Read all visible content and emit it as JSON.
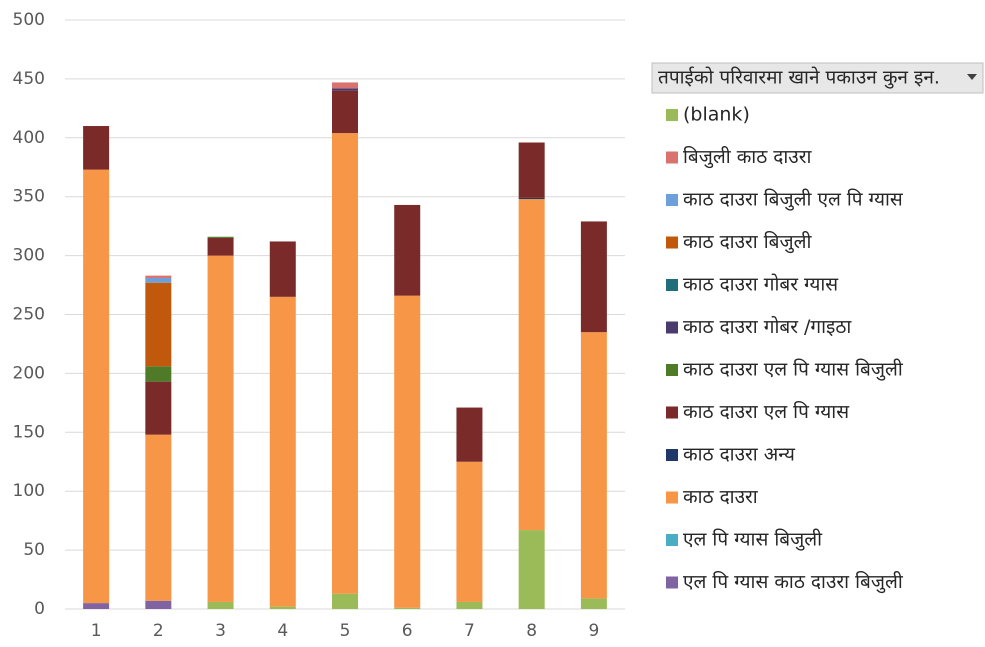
{
  "chart_data": {
    "type": "stacked_bar",
    "legend_title": "तपाईको परिवारमा खाने पकाउन कुन इन.",
    "categories": [
      "1",
      "2",
      "3",
      "4",
      "5",
      "6",
      "7",
      "8",
      "9"
    ],
    "ylim": [
      0,
      500
    ],
    "yticks": [
      0,
      50,
      100,
      150,
      200,
      250,
      300,
      350,
      400,
      450,
      500
    ],
    "grid": true,
    "legend": "right",
    "series": [
      {
        "name": "(blank)",
        "color": "#9bbb59",
        "values": [
          0,
          0,
          6,
          2,
          13,
          1,
          6,
          67,
          9
        ]
      },
      {
        "name": "बिजुली  काठ दाउरा",
        "color": "#d9736f",
        "values": [
          0,
          2,
          0,
          0,
          5,
          0,
          0,
          0,
          0
        ]
      },
      {
        "name": "काठ दाउरा  बिजुली  एल पि ग्यास",
        "color": "#6f9fd8",
        "values": [
          0,
          4,
          0,
          0,
          0,
          0,
          0,
          0,
          0
        ]
      },
      {
        "name": "काठ दाउरा  बिजुली",
        "color": "#c0590b",
        "values": [
          0,
          71,
          0,
          0,
          0,
          0,
          0,
          0,
          0
        ]
      },
      {
        "name": "काठ दाउरा  गोबर ग्यास",
        "color": "#1f6e7a",
        "values": [
          0,
          0,
          0,
          0,
          0,
          0,
          0,
          0,
          0
        ]
      },
      {
        "name": "काठ दाउरा  गोबर /गाइठा",
        "color": "#4b3a6e",
        "values": [
          0,
          0,
          0,
          0,
          2,
          0,
          0,
          0,
          0
        ]
      },
      {
        "name": "काठ दाउरा  एल पि ग्यास  बिजुली",
        "color": "#4f7a28",
        "values": [
          0,
          13,
          1,
          0,
          0,
          0,
          0,
          0,
          0
        ]
      },
      {
        "name": "काठ दाउरा  एल पि ग्यास",
        "color": "#7b2a2a",
        "values": [
          37,
          45,
          15,
          47,
          36,
          77,
          46,
          47,
          94
        ]
      },
      {
        "name": "काठ दाउरा  अन्य",
        "color": "#1f3a68",
        "values": [
          0,
          0,
          0,
          0,
          0,
          0,
          0,
          1,
          0
        ]
      },
      {
        "name": "काठ दाउरा",
        "color": "#f79646",
        "values": [
          368,
          141,
          294,
          263,
          391,
          265,
          119,
          281,
          226
        ]
      },
      {
        "name": "एल पि ग्यास  बिजुली",
        "color": "#4bacc6",
        "values": [
          0,
          0,
          0,
          0,
          0,
          0,
          0,
          0,
          0
        ]
      },
      {
        "name": "एल पि ग्यास  काठ दाउरा  बिजुली",
        "color": "#8064a2",
        "values": [
          5,
          7,
          0,
          0,
          0,
          0,
          0,
          0,
          0
        ]
      }
    ]
  }
}
